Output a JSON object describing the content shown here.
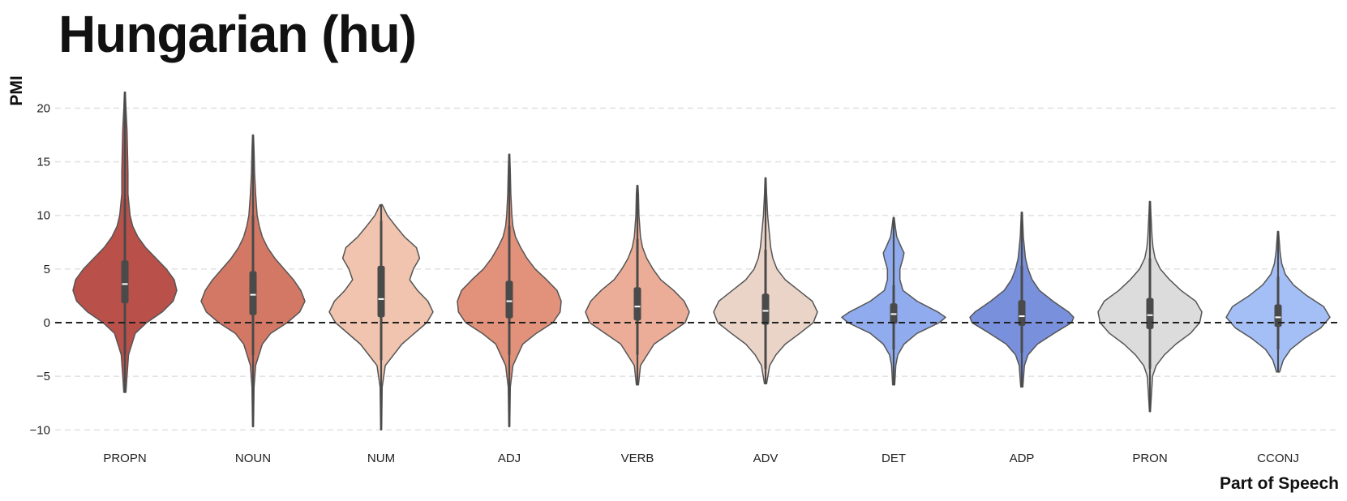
{
  "chart_data": {
    "type": "violin",
    "title": "Hungarian (hu)",
    "xlabel": "Part of Speech",
    "ylabel": "PMI",
    "ylim": [
      -10.5,
      22
    ],
    "yticks": [
      -10,
      -5,
      0,
      5,
      10,
      15,
      20
    ],
    "ytick_labels": [
      "−10",
      "−5",
      "0",
      "5",
      "10",
      "15",
      "20"
    ],
    "reference_line": 0,
    "grid": true,
    "categories": [
      "PROPN",
      "NOUN",
      "NUM",
      "ADJ",
      "VERB",
      "ADV",
      "DET",
      "ADP",
      "PRON",
      "CCONJ"
    ],
    "colors": [
      "#b9504a",
      "#d37865",
      "#f0c4ae",
      "#e2917a",
      "#ebad97",
      "#ead4c8",
      "#90abee",
      "#7990dc",
      "#dcdcdc",
      "#a4bef6"
    ],
    "series": [
      {
        "name": "PROPN",
        "min": -6.5,
        "max": 21.5,
        "q1": 1.8,
        "median": 3.6,
        "q3": 5.8,
        "whisker_low": -3.0,
        "whisker_high": 11.5,
        "density": [
          [
            -6.5,
            0.02
          ],
          [
            -5,
            0.04
          ],
          [
            -3,
            0.07
          ],
          [
            -1,
            0.2
          ],
          [
            0,
            0.42
          ],
          [
            1,
            0.72
          ],
          [
            2,
            0.93
          ],
          [
            3,
            1.0
          ],
          [
            4,
            0.95
          ],
          [
            5,
            0.8
          ],
          [
            6,
            0.6
          ],
          [
            7,
            0.4
          ],
          [
            8,
            0.25
          ],
          [
            9,
            0.15
          ],
          [
            10,
            0.1
          ],
          [
            12,
            0.06
          ],
          [
            14,
            0.06
          ],
          [
            16,
            0.05
          ],
          [
            18,
            0.04
          ],
          [
            20,
            0.02
          ],
          [
            21.5,
            0.01
          ]
        ]
      },
      {
        "name": "NOUN",
        "min": -9.7,
        "max": 17.5,
        "q1": 0.7,
        "median": 2.6,
        "q3": 4.8,
        "whisker_low": -3.0,
        "whisker_high": 10.0,
        "density": [
          [
            -9.7,
            0.01
          ],
          [
            -6,
            0.02
          ],
          [
            -4,
            0.05
          ],
          [
            -2,
            0.18
          ],
          [
            -1,
            0.34
          ],
          [
            0,
            0.66
          ],
          [
            1,
            0.9
          ],
          [
            2,
            1.0
          ],
          [
            3,
            0.92
          ],
          [
            4,
            0.78
          ],
          [
            5,
            0.6
          ],
          [
            6,
            0.42
          ],
          [
            7,
            0.28
          ],
          [
            8,
            0.18
          ],
          [
            9,
            0.12
          ],
          [
            10,
            0.08
          ],
          [
            12,
            0.05
          ],
          [
            14,
            0.03
          ],
          [
            16,
            0.02
          ],
          [
            17.5,
            0.01
          ]
        ]
      },
      {
        "name": "NUM",
        "min": -10.0,
        "max": 11.0,
        "q1": 0.5,
        "median": 2.2,
        "q3": 5.3,
        "whisker_low": -3.5,
        "whisker_high": 9.5,
        "density": [
          [
            -10,
            0.01
          ],
          [
            -6,
            0.02
          ],
          [
            -4,
            0.08
          ],
          [
            -2,
            0.4
          ],
          [
            0,
            0.88
          ],
          [
            1,
            1.0
          ],
          [
            2,
            0.9
          ],
          [
            3,
            0.7
          ],
          [
            4,
            0.55
          ],
          [
            5,
            0.62
          ],
          [
            6,
            0.74
          ],
          [
            7,
            0.68
          ],
          [
            8,
            0.45
          ],
          [
            9,
            0.28
          ],
          [
            10,
            0.12
          ],
          [
            11,
            0.02
          ]
        ]
      },
      {
        "name": "ADJ",
        "min": -9.7,
        "max": 15.7,
        "q1": 0.4,
        "median": 2.0,
        "q3": 3.9,
        "whisker_low": -3.0,
        "whisker_high": 9.0,
        "density": [
          [
            -9.7,
            0.01
          ],
          [
            -6,
            0.02
          ],
          [
            -4,
            0.07
          ],
          [
            -2,
            0.26
          ],
          [
            -1,
            0.52
          ],
          [
            0,
            0.84
          ],
          [
            1,
            0.98
          ],
          [
            2,
            1.0
          ],
          [
            3,
            0.92
          ],
          [
            4,
            0.72
          ],
          [
            5,
            0.5
          ],
          [
            6,
            0.34
          ],
          [
            7,
            0.22
          ],
          [
            8,
            0.12
          ],
          [
            9,
            0.07
          ],
          [
            10,
            0.05
          ],
          [
            12,
            0.03
          ],
          [
            14,
            0.02
          ],
          [
            15.7,
            0.01
          ]
        ]
      },
      {
        "name": "VERB",
        "min": -5.8,
        "max": 12.8,
        "q1": 0.2,
        "median": 1.5,
        "q3": 3.3,
        "whisker_low": -3.0,
        "whisker_high": 7.8,
        "density": [
          [
            -5.8,
            0.02
          ],
          [
            -4,
            0.06
          ],
          [
            -2,
            0.32
          ],
          [
            -1,
            0.62
          ],
          [
            0,
            0.92
          ],
          [
            1,
            1.0
          ],
          [
            2,
            0.9
          ],
          [
            3,
            0.7
          ],
          [
            4,
            0.45
          ],
          [
            5,
            0.3
          ],
          [
            6,
            0.18
          ],
          [
            7,
            0.1
          ],
          [
            8,
            0.06
          ],
          [
            10,
            0.03
          ],
          [
            12,
            0.02
          ],
          [
            12.8,
            0.01
          ]
        ]
      },
      {
        "name": "ADV",
        "min": -5.7,
        "max": 13.5,
        "q1": -0.2,
        "median": 1.1,
        "q3": 2.7,
        "whisker_low": -4.3,
        "whisker_high": 6.8,
        "density": [
          [
            -5.7,
            0.02
          ],
          [
            -4,
            0.08
          ],
          [
            -3,
            0.2
          ],
          [
            -2,
            0.38
          ],
          [
            -1,
            0.66
          ],
          [
            0,
            0.92
          ],
          [
            1,
            1.0
          ],
          [
            2,
            0.9
          ],
          [
            3,
            0.64
          ],
          [
            4,
            0.38
          ],
          [
            5,
            0.22
          ],
          [
            6,
            0.14
          ],
          [
            7,
            0.1
          ],
          [
            8,
            0.08
          ],
          [
            9,
            0.06
          ],
          [
            10,
            0.04
          ],
          [
            12,
            0.02
          ],
          [
            13.5,
            0.01
          ]
        ]
      },
      {
        "name": "DET",
        "min": -5.8,
        "max": 9.8,
        "q1": -0.1,
        "median": 0.8,
        "q3": 1.8,
        "whisker_low": -2.5,
        "whisker_high": 3.5,
        "density": [
          [
            -5.8,
            0.02
          ],
          [
            -4,
            0.04
          ],
          [
            -3,
            0.08
          ],
          [
            -2,
            0.2
          ],
          [
            -1,
            0.45
          ],
          [
            0,
            0.88
          ],
          [
            0.5,
            1.0
          ],
          [
            1,
            0.85
          ],
          [
            2,
            0.45
          ],
          [
            3,
            0.18
          ],
          [
            4,
            0.12
          ],
          [
            5,
            0.12
          ],
          [
            6,
            0.18
          ],
          [
            6.5,
            0.2
          ],
          [
            7,
            0.15
          ],
          [
            8,
            0.06
          ],
          [
            9,
            0.03
          ],
          [
            9.8,
            0.01
          ]
        ]
      },
      {
        "name": "ADP",
        "min": -6.0,
        "max": 10.3,
        "q1": -0.3,
        "median": 0.6,
        "q3": 2.1,
        "whisker_low": -2.8,
        "whisker_high": 5.3,
        "density": [
          [
            -6,
            0.02
          ],
          [
            -4,
            0.05
          ],
          [
            -3,
            0.12
          ],
          [
            -2,
            0.3
          ],
          [
            -1,
            0.62
          ],
          [
            0,
            0.96
          ],
          [
            0.5,
            1.0
          ],
          [
            1,
            0.9
          ],
          [
            2,
            0.6
          ],
          [
            3,
            0.34
          ],
          [
            4,
            0.2
          ],
          [
            5,
            0.12
          ],
          [
            6,
            0.07
          ],
          [
            7,
            0.05
          ],
          [
            8,
            0.03
          ],
          [
            10.3,
            0.01
          ]
        ]
      },
      {
        "name": "PRON",
        "min": -8.3,
        "max": 11.3,
        "q1": -0.6,
        "median": 0.7,
        "q3": 2.3,
        "whisker_low": -4.3,
        "whisker_high": 6.0,
        "density": [
          [
            -8.3,
            0.01
          ],
          [
            -5,
            0.05
          ],
          [
            -4,
            0.12
          ],
          [
            -3,
            0.28
          ],
          [
            -2,
            0.5
          ],
          [
            -1,
            0.78
          ],
          [
            0,
            0.96
          ],
          [
            1,
            1.0
          ],
          [
            2,
            0.88
          ],
          [
            3,
            0.6
          ],
          [
            4,
            0.38
          ],
          [
            5,
            0.2
          ],
          [
            6,
            0.1
          ],
          [
            7,
            0.06
          ],
          [
            8,
            0.04
          ],
          [
            10,
            0.02
          ],
          [
            11.3,
            0.01
          ]
        ]
      },
      {
        "name": "CCONJ",
        "min": -4.6,
        "max": 8.5,
        "q1": -0.4,
        "median": 0.5,
        "q3": 1.7,
        "whisker_low": -2.5,
        "whisker_high": 4.3,
        "density": [
          [
            -4.6,
            0.03
          ],
          [
            -3.5,
            0.1
          ],
          [
            -2.5,
            0.24
          ],
          [
            -1.5,
            0.5
          ],
          [
            -0.5,
            0.82
          ],
          [
            0.5,
            1.0
          ],
          [
            1.5,
            0.88
          ],
          [
            2.5,
            0.56
          ],
          [
            3.5,
            0.3
          ],
          [
            4.5,
            0.14
          ],
          [
            5.5,
            0.07
          ],
          [
            6.5,
            0.04
          ],
          [
            8.5,
            0.01
          ]
        ]
      }
    ]
  }
}
